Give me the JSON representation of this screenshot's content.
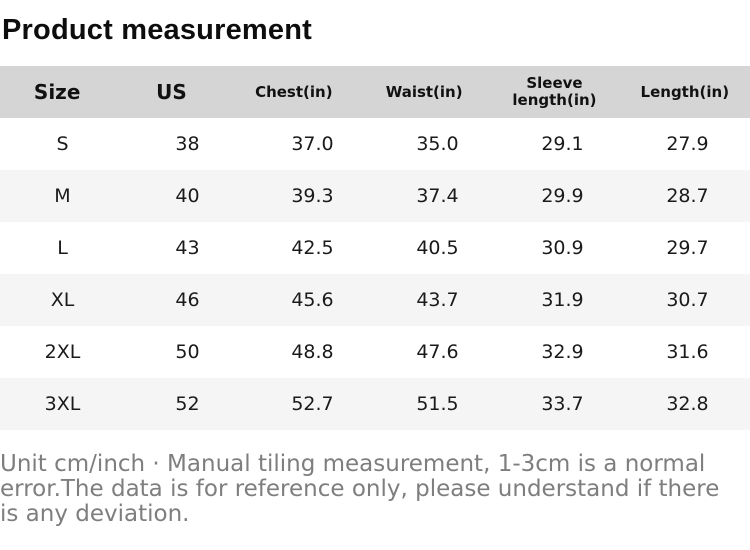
{
  "title": "Product measurement",
  "table": {
    "headers": [
      "Size",
      "US",
      "Chest(in)",
      "Waist(in)",
      "Sleeve length(in)",
      "Length(in)"
    ],
    "rows": [
      [
        "S",
        "38",
        "37.0",
        "35.0",
        "29.1",
        "27.9"
      ],
      [
        "M",
        "40",
        "39.3",
        "37.4",
        "29.9",
        "28.7"
      ],
      [
        "L",
        "43",
        "42.5",
        "40.5",
        "30.9",
        "29.7"
      ],
      [
        "XL",
        "46",
        "45.6",
        "43.7",
        "31.9",
        "30.7"
      ],
      [
        "2XL",
        "50",
        "48.8",
        "47.6",
        "32.9",
        "31.6"
      ],
      [
        "3XL",
        "52",
        "52.7",
        "51.5",
        "33.7",
        "32.8"
      ]
    ]
  },
  "footer_note": "Unit cm/inch · Manual tiling measurement, 1-3cm is a normal error.The data is for reference only, please understand if there is any deviation.",
  "colors": {
    "header_bg": "#d5d5d5",
    "row_bg": "#ffffff",
    "row_alt_bg": "#f5f5f5",
    "text": "#141414",
    "footer_text": "#7e7e7e"
  }
}
